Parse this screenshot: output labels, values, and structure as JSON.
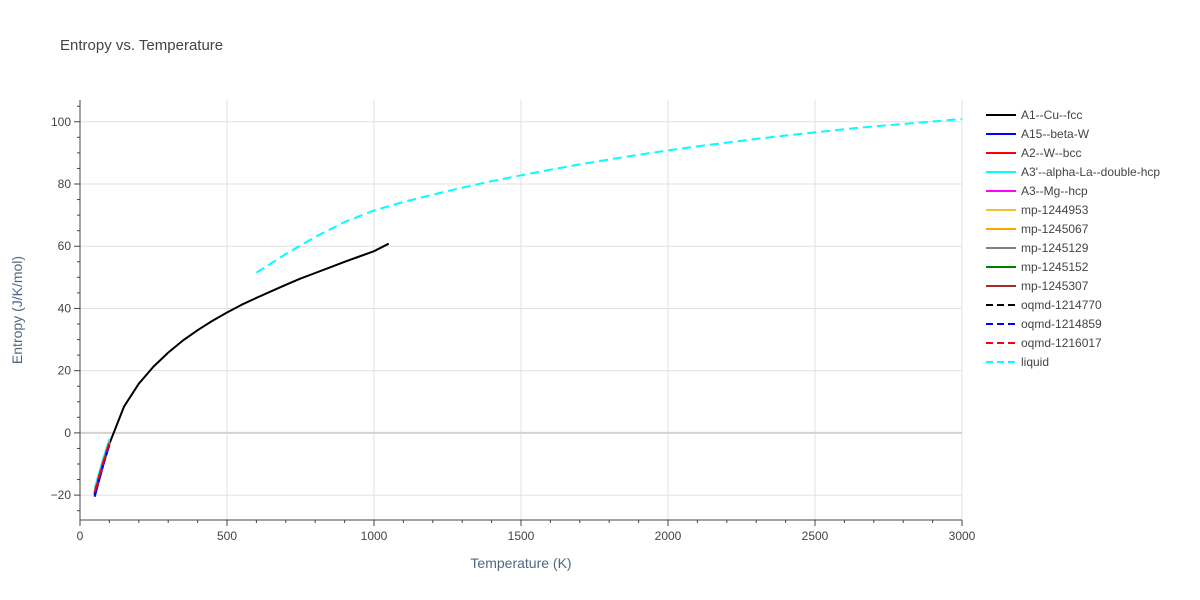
{
  "chart_data": {
    "type": "line",
    "title": "Entropy vs. Temperature",
    "xlabel": "Temperature (K)",
    "ylabel": "Entropy (J/K/mol)",
    "xlim": [
      0,
      3000
    ],
    "ylim": [
      -28,
      107
    ],
    "x_ticks": [
      0,
      500,
      1000,
      1500,
      2000,
      2500,
      3000
    ],
    "y_ticks": [
      -20,
      0,
      20,
      40,
      60,
      80,
      100
    ],
    "grid": true,
    "legend_position": "right",
    "series": [
      {
        "name": "A1--Cu--fcc",
        "color": "#000000",
        "dash": "solid",
        "x": [
          50,
          60,
          70,
          80,
          90,
          100,
          150,
          200,
          250,
          300,
          350,
          400,
          450,
          500,
          550,
          600,
          650,
          700,
          750,
          800,
          850,
          900,
          950,
          1000,
          1050
        ],
        "y": [
          -20,
          -16.5,
          -13,
          -9.8,
          -6.6,
          -3.5,
          8.5,
          15.8,
          21.3,
          25.8,
          29.7,
          33,
          36,
          38.7,
          41.2,
          43.4,
          45.5,
          47.6,
          49.6,
          51.4,
          53.2,
          55,
          56.7,
          58.4,
          60.8
        ]
      },
      {
        "name": "A15--beta-W",
        "color": "#0000ff",
        "dash": "solid",
        "x": [
          50,
          60,
          70,
          80,
          90,
          100
        ],
        "y": [
          -20.5,
          -17,
          -13.5,
          -10,
          -6.8,
          -3.8
        ]
      },
      {
        "name": "A2--W--bcc",
        "color": "#ff0000",
        "dash": "solid",
        "x": [
          50,
          60,
          70,
          80,
          90,
          100
        ],
        "y": [
          -19.5,
          -16,
          -12.5,
          -9.3,
          -6.2,
          -3.2
        ]
      },
      {
        "name": "A3'--alpha-La--double-hcp",
        "color": "#00ffff",
        "dash": "solid",
        "x": [
          50,
          60,
          70,
          80,
          90,
          100
        ],
        "y": [
          -18,
          -14.5,
          -11.2,
          -8,
          -5,
          -2
        ]
      },
      {
        "name": "A3--Mg--hcp",
        "color": "#ff00ff",
        "dash": "solid",
        "x": [
          50,
          60,
          70,
          80,
          90,
          100
        ],
        "y": [
          -19,
          -15.5,
          -12.2,
          -9,
          -5.9,
          -3
        ]
      },
      {
        "name": "mp-1244953",
        "color": "#f2c12e",
        "dash": "solid",
        "x": [
          50,
          60,
          70,
          80,
          90,
          100
        ],
        "y": [
          -19.2,
          -15.7,
          -12.4,
          -9.2,
          -6.1,
          -3.1
        ]
      },
      {
        "name": "mp-1245067",
        "color": "#ffa500",
        "dash": "solid",
        "x": [
          50,
          60,
          70,
          80,
          90,
          100
        ],
        "y": [
          -19.3,
          -15.8,
          -12.5,
          -9.3,
          -6.2,
          -3.2
        ]
      },
      {
        "name": "mp-1245129",
        "color": "#808080",
        "dash": "solid",
        "x": [
          50,
          60,
          70,
          80,
          90,
          100
        ],
        "y": [
          -19.4,
          -15.9,
          -12.6,
          -9.4,
          -6.3,
          -3.3
        ]
      },
      {
        "name": "mp-1245152",
        "color": "#008000",
        "dash": "solid",
        "x": [
          50,
          60,
          70,
          80,
          90,
          100
        ],
        "y": [
          -19.6,
          -16.1,
          -12.7,
          -9.5,
          -6.4,
          -3.4
        ]
      },
      {
        "name": "mp-1245307",
        "color": "#a52a2a",
        "dash": "solid",
        "x": [
          50,
          60,
          70,
          80,
          90,
          100
        ],
        "y": [
          -19.7,
          -16.2,
          -12.8,
          -9.6,
          -6.5,
          -3.5
        ]
      },
      {
        "name": "oqmd-1214770",
        "color": "#000000",
        "dash": "dash",
        "x": [
          50,
          60,
          70,
          80,
          90,
          100
        ],
        "y": [
          -19.8,
          -16.3,
          -12.9,
          -9.7,
          -6.6,
          -3.6
        ]
      },
      {
        "name": "oqmd-1214859",
        "color": "#0000ff",
        "dash": "dash",
        "x": [
          50,
          60,
          70,
          80,
          90,
          100
        ],
        "y": [
          -20.2,
          -16.7,
          -13.2,
          -10,
          -6.8,
          -3.8
        ]
      },
      {
        "name": "oqmd-1216017",
        "color": "#ff0000",
        "dash": "dash",
        "x": [
          50,
          60,
          70,
          80,
          90,
          100
        ],
        "y": [
          -19.1,
          -15.6,
          -12.3,
          -9.1,
          -6,
          -3
        ]
      },
      {
        "name": "liquid",
        "color": "#00ffff",
        "dash": "dash",
        "x": [
          600,
          700,
          800,
          900,
          1000,
          1100,
          1200,
          1300,
          1400,
          1500,
          1600,
          1700,
          1800,
          1900,
          2000,
          2100,
          2200,
          2300,
          2400,
          2500,
          2600,
          2700,
          2800,
          2900,
          3000
        ],
        "y": [
          51.5,
          57.5,
          63,
          67.8,
          71.5,
          74.2,
          76.6,
          78.8,
          80.9,
          82.8,
          84.6,
          86.3,
          87.9,
          89.4,
          90.8,
          92.1,
          93.3,
          94.5,
          95.6,
          96.6,
          97.6,
          98.5,
          99.3,
          100.1,
          100.9
        ]
      }
    ]
  }
}
